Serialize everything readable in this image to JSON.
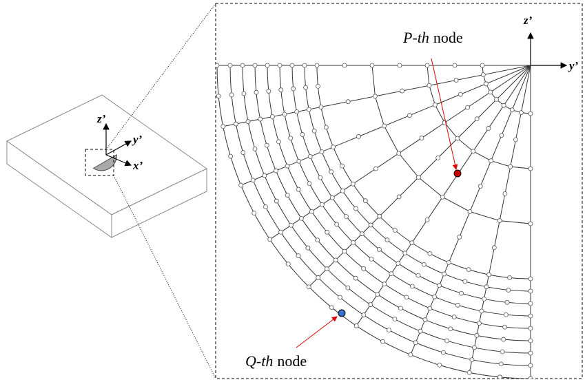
{
  "left_axes": {
    "z": "z’",
    "y": "y’",
    "x": "x’"
  },
  "mesh_axes": {
    "z": "z’",
    "y": "y’"
  },
  "p_node": {
    "emphasis": "P-th",
    "text": "node"
  },
  "q_node": {
    "emphasis": "Q-th",
    "text": "node"
  }
}
